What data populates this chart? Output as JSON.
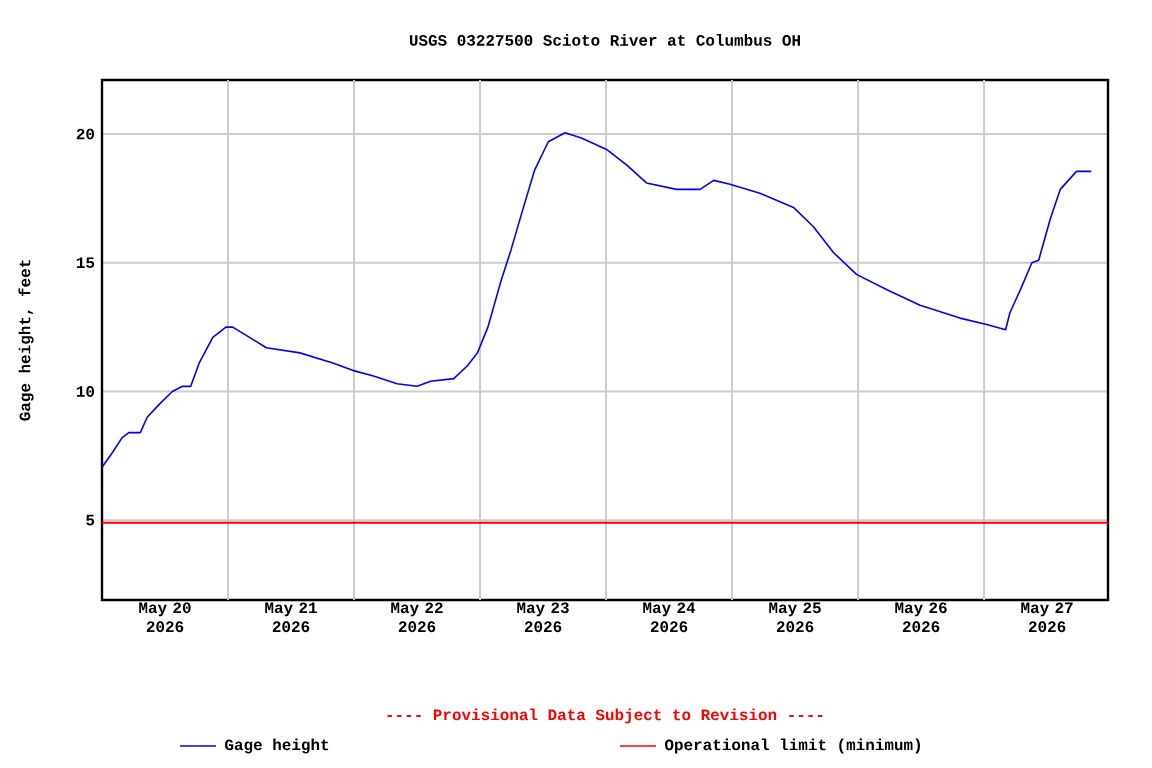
{
  "chart_data": {
    "type": "line",
    "title": "USGS 03227500 Scioto River at Columbus OH",
    "xlabel": null,
    "ylabel": "Gage height, feet",
    "x": [
      "2026-05-20T00:00",
      "2026-05-20T01:54",
      "2026-05-20T03:48",
      "2026-05-20T05:06",
      "2026-05-20T07:18",
      "2026-05-20T08:36",
      "2026-05-20T10:54",
      "2026-05-20T13:24",
      "2026-05-20T15:18",
      "2026-05-20T16:54",
      "2026-05-20T18:30",
      "2026-05-20T21:06",
      "2026-05-20T23:36",
      "2026-05-21T00:54",
      "2026-05-21T04:06",
      "2026-05-21T07:18",
      "2026-05-21T13:42",
      "2026-05-21T20:06",
      "2026-05-22T00:06",
      "2026-05-22T03:42",
      "2026-05-22T08:12",
      "2026-05-22T12:00",
      "2026-05-22T14:36",
      "2026-05-22T19:00",
      "2026-05-22T21:36",
      "2026-05-22T23:30",
      "2026-05-23T01:30",
      "2026-05-23T04:00",
      "2026-05-23T05:54",
      "2026-05-23T07:54",
      "2026-05-23T10:24",
      "2026-05-23T13:00",
      "2026-05-23T16:12",
      "2026-05-23T19:18",
      "2026-05-24T00:06",
      "2026-05-24T03:54",
      "2026-05-24T07:42",
      "2026-05-24T13:24",
      "2026-05-24T17:54",
      "2026-05-24T20:30",
      "2026-05-24T23:36",
      "2026-05-25T05:18",
      "2026-05-25T11:42",
      "2026-05-25T15:30",
      "2026-05-25T19:18",
      "2026-05-25T23:42",
      "2026-05-26T05:30",
      "2026-05-26T11:48",
      "2026-05-26T19:24",
      "2026-05-27T00:30",
      "2026-05-27T04:06",
      "2026-05-27T04:54",
      "2026-05-27T06:54",
      "2026-05-27T09:06",
      "2026-05-27T10:24",
      "2026-05-27T12:36",
      "2026-05-27T14:30",
      "2026-05-27T17:36",
      "2026-05-27T20:24"
    ],
    "series": [
      {
        "name": "Gage height",
        "color": "#0000ff",
        "values": [
          7.06,
          7.6,
          8.2,
          8.4,
          8.4,
          9.0,
          9.5,
          10.0,
          10.2,
          10.2,
          11.1,
          12.1,
          12.5,
          12.5,
          12.1,
          11.7,
          11.5,
          11.1,
          10.8,
          10.6,
          10.3,
          10.2,
          10.4,
          10.5,
          11.0,
          11.5,
          12.5,
          14.3,
          15.5,
          16.9,
          18.6,
          19.7,
          20.05,
          19.85,
          19.4,
          18.8,
          18.1,
          17.85,
          17.85,
          18.2,
          18.05,
          17.7,
          17.15,
          16.4,
          15.4,
          14.55,
          13.95,
          13.35,
          12.85,
          12.6,
          12.4,
          13.05,
          13.95,
          15.0,
          15.1,
          16.7,
          17.85,
          18.55,
          18.55
        ]
      }
    ],
    "xlim": [
      "2026-05-20T00:00",
      "2026-05-27T23:36"
    ],
    "xticks": [
      {
        "value": "2026-05-20T12:00",
        "label": "May 20 2026"
      },
      {
        "value": "2026-05-21T00:00",
        "label": null
      },
      {
        "value": "2026-05-21T12:00",
        "label": "May 21 2026"
      },
      {
        "value": "2026-05-22T00:00",
        "label": null
      },
      {
        "value": "2026-05-22T12:00",
        "label": "May 22 2026"
      },
      {
        "value": "2026-05-23T00:00",
        "label": null
      },
      {
        "value": "2026-05-23T12:00",
        "label": "May 23 2026"
      },
      {
        "value": "2026-05-24T00:00",
        "label": null
      },
      {
        "value": "2026-05-24T12:00",
        "label": "May 24 2026"
      },
      {
        "value": "2026-05-25T00:00",
        "label": null
      },
      {
        "value": "2026-05-25T12:00",
        "label": "May 25 2026"
      },
      {
        "value": "2026-05-26T00:00",
        "label": null
      },
      {
        "value": "2026-05-26T12:00",
        "label": "May 26 2026"
      },
      {
        "value": "2026-05-27T00:00",
        "label": null
      },
      {
        "value": "2026-05-27T12:00",
        "label": "May 27 2026"
      }
    ],
    "ylim": [
      1.9,
      22.1
    ],
    "yticks": [
      5,
      10,
      15,
      20
    ],
    "ref_lines": [
      {
        "axis": "y",
        "value": 4.9,
        "label": "Operational limit (minimum)",
        "color": "#ff0000"
      }
    ],
    "annotations": [
      "---- Provisional Data Subject to Revision ----"
    ],
    "grid": true,
    "legend": "bottom",
    "marker": "none",
    "line_style": "solid"
  }
}
